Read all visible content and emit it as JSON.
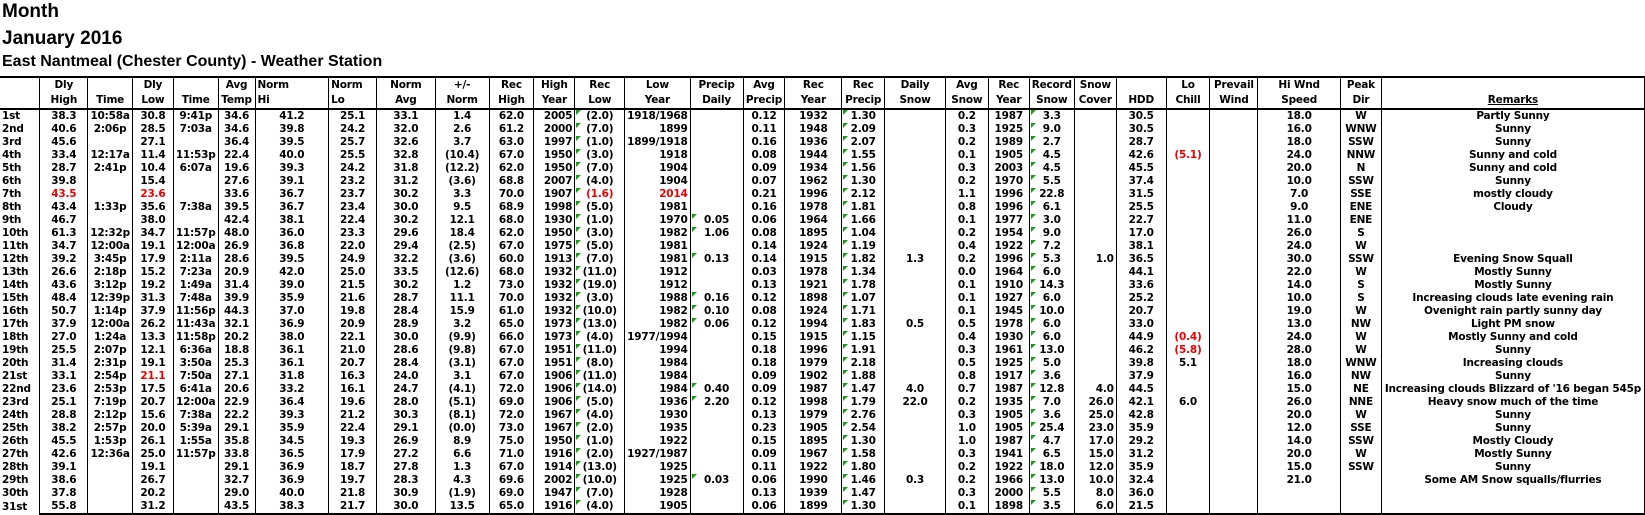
{
  "title": {
    "line1": "Month",
    "line2": "January 2016",
    "line3": "East Nantmeal (Chester County) - Weather Station"
  },
  "colors": {
    "highlight": "#ee0000",
    "comment_marker": "#1a9c1a"
  },
  "headers": [
    [
      "Dly",
      "High"
    ],
    [
      "",
      "Time"
    ],
    [
      "Dly",
      "Low"
    ],
    [
      "",
      "Time"
    ],
    [
      "Avg",
      "Temp"
    ],
    [
      "Norm",
      "Hi"
    ],
    [
      "Norm",
      "Lo"
    ],
    [
      "Norm",
      "Avg"
    ],
    [
      "+/-",
      "Norm"
    ],
    [
      "Rec",
      "High"
    ],
    [
      "High",
      "Year"
    ],
    [
      "Rec",
      "Low"
    ],
    [
      "Low",
      "Year"
    ],
    [
      "Precip",
      "Daily"
    ],
    [
      "Avg",
      "Precip"
    ],
    [
      "Rec",
      "Year"
    ],
    [
      "Rec",
      "Precip"
    ],
    [
      "Daily",
      "Snow"
    ],
    [
      "Avg",
      "Snow"
    ],
    [
      "Rec",
      "Year"
    ],
    [
      "Record",
      "Snow"
    ],
    [
      "Snow",
      "Cover"
    ],
    [
      "",
      "HDD"
    ],
    [
      "Lo",
      "Chill"
    ],
    [
      "Prevail",
      "Wind"
    ],
    [
      "Hi Wnd",
      "Speed"
    ],
    [
      "Peak",
      "Dir"
    ],
    [
      "",
      "Remarks"
    ]
  ],
  "rows": [
    [
      "1st",
      "38.3",
      "10:58a",
      "30.8",
      "9:41p",
      "34.6",
      "41.2",
      "25.1",
      "33.1",
      "1.4",
      "62.0",
      "2005",
      "(2.0)",
      "1918/1968",
      "",
      "0.12",
      "1932",
      "1.30",
      "",
      "0.2",
      "1987",
      "3.3",
      "",
      "30.5",
      "",
      "",
      "18.0",
      "W",
      "Partly Sunny"
    ],
    [
      "2nd",
      "40.6",
      "2:06p",
      "28.5",
      "7:03a",
      "34.6",
      "39.8",
      "24.2",
      "32.0",
      "2.6",
      "61.2",
      "2000",
      "(7.0)",
      "1899",
      "",
      "0.11",
      "1948",
      "2.09",
      "",
      "0.3",
      "1925",
      "9.0",
      "",
      "30.5",
      "",
      "",
      "16.0",
      "WNW",
      "Sunny"
    ],
    [
      "3rd",
      "45.6",
      "",
      "27.1",
      "",
      "36.4",
      "39.5",
      "25.7",
      "32.6",
      "3.7",
      "63.0",
      "1997",
      "(1.0)",
      "1899/1918",
      "",
      "0.16",
      "1936",
      "2.07",
      "",
      "0.2",
      "1989",
      "2.7",
      "",
      "28.7",
      "",
      "",
      "18.0",
      "SSW",
      "Sunny"
    ],
    [
      "4th",
      "33.4",
      "12:17a",
      "11.4",
      "11:53p",
      "22.4",
      "40.0",
      "25.5",
      "32.8",
      "(10.4)",
      "67.0",
      "1950",
      "(3.0)",
      "1918",
      "",
      "0.08",
      "1944",
      "1.55",
      "",
      "0.1",
      "1905",
      "4.5",
      "",
      "42.6",
      "(5.1)",
      "",
      "24.0",
      "NNW",
      "Sunny and cold"
    ],
    [
      "5th",
      "28.7",
      "2:41p",
      "10.4",
      "6:07a",
      "19.6",
      "39.3",
      "24.2",
      "31.8",
      "(12.2)",
      "62.0",
      "1950",
      "(7.0)",
      "1904",
      "",
      "0.09",
      "1934",
      "1.56",
      "",
      "0.3",
      "2003",
      "4.5",
      "",
      "45.5",
      "",
      "",
      "20.0",
      "N",
      "Sunny and cold"
    ],
    [
      "6th",
      "39.8",
      "",
      "15.4",
      "",
      "27.6",
      "39.1",
      "23.2",
      "31.2",
      "(3.6)",
      "68.8",
      "2007",
      "(4.0)",
      "1904",
      "",
      "0.07",
      "1962",
      "1.30",
      "",
      "0.2",
      "1970",
      "5.5",
      "",
      "37.4",
      "",
      "",
      "10.0",
      "SSW",
      "Sunny"
    ],
    [
      "7th",
      "43.5",
      "",
      "23.6",
      "",
      "33.6",
      "36.7",
      "23.7",
      "30.2",
      "3.3",
      "70.0",
      "1907",
      "(1.6)",
      "2014",
      "",
      "0.21",
      "1996",
      "2.12",
      "",
      "1.1",
      "1996",
      "22.8",
      "",
      "31.5",
      "",
      "",
      "7.0",
      "SSE",
      "mostly cloudy"
    ],
    [
      "8th",
      "43.4",
      "1:33p",
      "35.6",
      "7:38a",
      "39.5",
      "36.7",
      "23.4",
      "30.0",
      "9.5",
      "68.9",
      "1998",
      "(5.0)",
      "1981",
      "",
      "0.16",
      "1978",
      "1.81",
      "",
      "0.8",
      "1996",
      "6.1",
      "",
      "25.5",
      "",
      "",
      "9.0",
      "ENE",
      "Cloudy"
    ],
    [
      "9th",
      "46.7",
      "",
      "38.0",
      "",
      "42.4",
      "38.1",
      "22.4",
      "30.2",
      "12.1",
      "68.0",
      "1930",
      "(1.0)",
      "1970",
      "0.05",
      "0.06",
      "1964",
      "1.66",
      "",
      "0.1",
      "1977",
      "3.0",
      "",
      "22.7",
      "",
      "",
      "11.0",
      "ENE",
      ""
    ],
    [
      "10th",
      "61.3",
      "12:32p",
      "34.7",
      "11:57p",
      "48.0",
      "36.0",
      "23.3",
      "29.6",
      "18.4",
      "62.0",
      "1950",
      "(3.0)",
      "1982",
      "1.06",
      "0.08",
      "1895",
      "1.04",
      "",
      "0.2",
      "1954",
      "9.0",
      "",
      "17.0",
      "",
      "",
      "26.0",
      "S",
      ""
    ],
    [
      "11th",
      "34.7",
      "12:00a",
      "19.1",
      "12:00a",
      "26.9",
      "36.8",
      "22.0",
      "29.4",
      "(2.5)",
      "67.0",
      "1975",
      "(5.0)",
      "1981",
      "",
      "0.14",
      "1924",
      "1.19",
      "",
      "0.4",
      "1922",
      "7.2",
      "",
      "38.1",
      "",
      "",
      "24.0",
      "W",
      ""
    ],
    [
      "12th",
      "39.2",
      "3:45p",
      "17.9",
      "2:11a",
      "28.6",
      "39.5",
      "24.9",
      "32.2",
      "(3.6)",
      "60.0",
      "1913",
      "(7.0)",
      "1981",
      "0.13",
      "0.14",
      "1915",
      "1.82",
      "1.3",
      "0.2",
      "1996",
      "5.3",
      "1.0",
      "36.5",
      "",
      "",
      "30.0",
      "SSW",
      "Evening Snow Squall"
    ],
    [
      "13th",
      "26.6",
      "2:18p",
      "15.2",
      "7:23a",
      "20.9",
      "42.0",
      "25.0",
      "33.5",
      "(12.6)",
      "68.0",
      "1932",
      "(11.0)",
      "1912",
      "",
      "0.03",
      "1978",
      "1.34",
      "",
      "0.0",
      "1964",
      "6.0",
      "",
      "44.1",
      "",
      "",
      "22.0",
      "W",
      "Mostly Sunny"
    ],
    [
      "14th",
      "43.6",
      "3:12p",
      "19.2",
      "1:49a",
      "31.4",
      "39.0",
      "21.5",
      "30.2",
      "1.2",
      "73.0",
      "1932",
      "(19.0)",
      "1912",
      "",
      "0.13",
      "1921",
      "1.78",
      "",
      "0.1",
      "1910",
      "14.3",
      "",
      "33.6",
      "",
      "",
      "14.0",
      "S",
      "Mostly Sunny"
    ],
    [
      "15th",
      "48.4",
      "12:39p",
      "31.3",
      "7:48a",
      "39.9",
      "35.9",
      "21.6",
      "28.7",
      "11.1",
      "70.0",
      "1932",
      "(3.0)",
      "1988",
      "0.16",
      "0.12",
      "1898",
      "1.07",
      "",
      "0.1",
      "1927",
      "6.0",
      "",
      "25.2",
      "",
      "",
      "10.0",
      "S",
      "Increasing clouds late evening rain"
    ],
    [
      "16th",
      "50.7",
      "1:14p",
      "37.9",
      "11:56p",
      "44.3",
      "37.0",
      "19.8",
      "28.4",
      "15.9",
      "61.0",
      "1932",
      "(10.0)",
      "1982",
      "0.10",
      "0.08",
      "1924",
      "1.71",
      "",
      "0.1",
      "1945",
      "10.0",
      "",
      "20.7",
      "",
      "",
      "19.0",
      "W",
      "Ovenight rain partly sunny day"
    ],
    [
      "17th",
      "37.9",
      "12:00a",
      "26.2",
      "11:43a",
      "32.1",
      "36.9",
      "20.9",
      "28.9",
      "3.2",
      "65.0",
      "1973",
      "(13.0)",
      "1982",
      "0.06",
      "0.12",
      "1994",
      "1.83",
      "0.5",
      "0.5",
      "1978",
      "6.0",
      "",
      "33.0",
      "",
      "",
      "13.0",
      "NW",
      "Light PM snow"
    ],
    [
      "18th",
      "27.0",
      "1:24a",
      "13.3",
      "11:58p",
      "20.2",
      "38.0",
      "22.1",
      "30.0",
      "(9.9)",
      "66.0",
      "1973",
      "(4.0)",
      "1977/1994",
      "",
      "0.15",
      "1915",
      "1.15",
      "",
      "0.4",
      "1930",
      "6.0",
      "",
      "44.9",
      "(0.4)",
      "",
      "24.0",
      "W",
      "Mostly Sunny and cold"
    ],
    [
      "19th",
      "25.5",
      "2:07p",
      "12.1",
      "6:36a",
      "18.8",
      "36.1",
      "21.0",
      "28.6",
      "(9.8)",
      "67.0",
      "1951",
      "(11.0)",
      "1994",
      "",
      "0.18",
      "1996",
      "1.91",
      "",
      "0.3",
      "1961",
      "13.0",
      "",
      "46.2",
      "(5.8)",
      "",
      "28.0",
      "W",
      "Sunny"
    ],
    [
      "20th",
      "31.4",
      "2:31p",
      "19.1",
      "3:50a",
      "25.3",
      "36.1",
      "20.7",
      "28.4",
      "(3.1)",
      "67.0",
      "1951",
      "(8.0)",
      "1984",
      "",
      "0.18",
      "1979",
      "2.18",
      "",
      "0.5",
      "1925",
      "5.0",
      "",
      "39.8",
      "5.1",
      "",
      "18.0",
      "WNW",
      "Increasing clouds"
    ],
    [
      "21st",
      "33.1",
      "2:54p",
      "21.1",
      "7:50a",
      "27.1",
      "31.8",
      "16.3",
      "24.0",
      "3.1",
      "67.0",
      "1906",
      "(11.0)",
      "1984",
      "",
      "0.09",
      "1902",
      "1.88",
      "",
      "0.8",
      "1917",
      "3.6",
      "",
      "37.9",
      "",
      "",
      "16.0",
      "NW",
      "Sunny"
    ],
    [
      "22nd",
      "23.6",
      "2:53p",
      "17.5",
      "6:41a",
      "20.6",
      "33.2",
      "16.1",
      "24.7",
      "(4.1)",
      "72.0",
      "1906",
      "(14.0)",
      "1984",
      "0.40",
      "0.09",
      "1987",
      "1.47",
      "4.0",
      "0.7",
      "1987",
      "12.8",
      "4.0",
      "44.5",
      "",
      "",
      "15.0",
      "NE",
      "Increasing clouds Blizzard of '16 began 545p"
    ],
    [
      "23rd",
      "25.1",
      "7:19p",
      "20.7",
      "12:00a",
      "22.9",
      "36.4",
      "19.6",
      "28.0",
      "(5.1)",
      "69.0",
      "1906",
      "(5.0)",
      "1936",
      "2.20",
      "0.12",
      "1998",
      "1.79",
      "22.0",
      "0.2",
      "1935",
      "7.0",
      "26.0",
      "42.1",
      "6.0",
      "",
      "26.0",
      "NNE",
      "Heavy snow much of the time"
    ],
    [
      "24th",
      "28.8",
      "2:12p",
      "15.6",
      "7:38a",
      "22.2",
      "39.3",
      "21.2",
      "30.3",
      "(8.1)",
      "72.0",
      "1967",
      "(4.0)",
      "1930",
      "",
      "0.13",
      "1979",
      "2.76",
      "",
      "0.3",
      "1905",
      "3.6",
      "25.0",
      "42.8",
      "",
      "",
      "20.0",
      "W",
      "Sunny"
    ],
    [
      "25th",
      "38.2",
      "2:57p",
      "20.0",
      "5:39a",
      "29.1",
      "35.9",
      "22.4",
      "29.1",
      "(0.0)",
      "73.0",
      "1967",
      "(2.0)",
      "1935",
      "",
      "0.23",
      "1905",
      "2.54",
      "",
      "1.0",
      "1905",
      "25.4",
      "23.0",
      "35.9",
      "",
      "",
      "12.0",
      "SSE",
      "Sunny"
    ],
    [
      "26th",
      "45.5",
      "1:53p",
      "26.1",
      "1:55a",
      "35.8",
      "34.5",
      "19.3",
      "26.9",
      "8.9",
      "75.0",
      "1950",
      "(1.0)",
      "1922",
      "",
      "0.15",
      "1895",
      "1.30",
      "",
      "1.0",
      "1987",
      "4.7",
      "17.0",
      "29.2",
      "",
      "",
      "14.0",
      "SSW",
      "Mostly Cloudy"
    ],
    [
      "27th",
      "42.6",
      "12:36a",
      "25.0",
      "11:57p",
      "33.8",
      "36.5",
      "17.9",
      "27.2",
      "6.6",
      "71.0",
      "1916",
      "(2.0)",
      "1927/1987",
      "",
      "0.09",
      "1967",
      "1.58",
      "",
      "0.3",
      "1941",
      "6.5",
      "15.0",
      "31.2",
      "",
      "",
      "20.0",
      "W",
      "Mostly Sunny"
    ],
    [
      "28th",
      "39.1",
      "",
      "19.1",
      "",
      "29.1",
      "36.9",
      "18.7",
      "27.8",
      "1.3",
      "67.0",
      "1914",
      "(13.0)",
      "1925",
      "",
      "0.11",
      "1922",
      "1.80",
      "",
      "0.2",
      "1922",
      "18.0",
      "12.0",
      "35.9",
      "",
      "",
      "15.0",
      "SSW",
      "Sunny"
    ],
    [
      "29th",
      "38.6",
      "",
      "26.7",
      "",
      "32.7",
      "36.9",
      "19.7",
      "28.3",
      "4.3",
      "69.6",
      "2002",
      "(10.0)",
      "1925",
      "0.03",
      "0.06",
      "1990",
      "1.46",
      "0.3",
      "0.2",
      "1966",
      "13.0",
      "10.0",
      "32.4",
      "",
      "",
      "21.0",
      "",
      "Some AM Snow squalls/flurries"
    ],
    [
      "30th",
      "37.8",
      "",
      "20.2",
      "",
      "29.0",
      "40.0",
      "21.8",
      "30.9",
      "(1.9)",
      "69.0",
      "1947",
      "(7.0)",
      "1928",
      "",
      "0.13",
      "1939",
      "1.47",
      "",
      "0.3",
      "2000",
      "5.5",
      "8.0",
      "36.0",
      "",
      "",
      "",
      "",
      ""
    ],
    [
      "31st",
      "55.8",
      "",
      "31.2",
      "",
      "43.5",
      "38.3",
      "21.7",
      "30.0",
      "13.5",
      "65.0",
      "1916",
      "(4.0)",
      "1905",
      "",
      "0.06",
      "1899",
      "1.30",
      "",
      "0.1",
      "1898",
      "3.5",
      "6.0",
      "21.5",
      "",
      "",
      "",
      "",
      ""
    ]
  ],
  "highlighted_cells": {
    "4th": [
      "Lo Chill"
    ],
    "7th": [
      "Dly High",
      "Dly Low",
      "Rec Low",
      "Low Year"
    ],
    "18th": [
      "Lo Chill"
    ],
    "19th": [
      "Lo Chill"
    ],
    "21st": [
      "Dly Low"
    ]
  }
}
